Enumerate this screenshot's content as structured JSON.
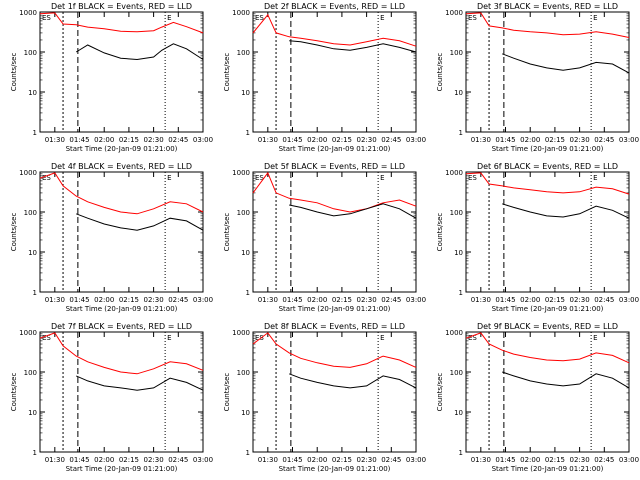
{
  "chart_data": [
    {
      "type": "line",
      "title": "Det 1f BLACK = Events, RED = LLD",
      "xlabel": "Start Time (20-Jan-09 01:21:00)",
      "ylabel": "Counts/sec",
      "yscale": "log",
      "ylim": [
        1,
        1000
      ],
      "xticks": [
        "01:30",
        "01:45",
        "02:00",
        "02:15",
        "02:30",
        "02:45",
        "03:00"
      ],
      "yticks": [
        "1",
        "10",
        "100",
        "1000"
      ],
      "markers": [
        "ES",
        "E"
      ],
      "series": [
        {
          "name": "Events",
          "color": "#000000",
          "x": [
            "01:43",
            "01:50",
            "02:00",
            "02:10",
            "02:20",
            "02:30",
            "02:35",
            "02:42",
            "02:50",
            "03:00"
          ],
          "y": [
            100,
            150,
            95,
            70,
            65,
            75,
            110,
            160,
            120,
            65
          ]
        },
        {
          "name": "LLD",
          "color": "#ff0000",
          "x": [
            "01:21",
            "01:30",
            "01:35",
            "01:43",
            "01:50",
            "02:00",
            "02:10",
            "02:20",
            "02:30",
            "02:35",
            "02:42",
            "02:50",
            "03:00"
          ],
          "y": [
            900,
            950,
            500,
            480,
            420,
            380,
            330,
            320,
            340,
            420,
            550,
            430,
            300
          ]
        }
      ]
    },
    {
      "type": "line",
      "title": "Det 2f BLACK = Events, RED = LLD",
      "xlabel": "Start Time (20-Jan-09 01:21:00)",
      "ylabel": "Counts/sec",
      "yscale": "log",
      "ylim": [
        1,
        1000
      ],
      "xticks": [
        "01:30",
        "01:45",
        "02:00",
        "02:15",
        "02:30",
        "02:45",
        "03:00"
      ],
      "yticks": [
        "1",
        "10",
        "100",
        "1000"
      ],
      "markers": [
        "ES",
        "E"
      ],
      "series": [
        {
          "name": "Events",
          "color": "#000000",
          "x": [
            "01:43",
            "01:50",
            "02:00",
            "02:10",
            "02:20",
            "02:30",
            "02:40",
            "02:50",
            "03:00"
          ],
          "y": [
            190,
            180,
            150,
            120,
            110,
            130,
            160,
            130,
            100
          ]
        },
        {
          "name": "LLD",
          "color": "#ff0000",
          "x": [
            "01:21",
            "01:30",
            "01:35",
            "01:43",
            "01:50",
            "02:00",
            "02:10",
            "02:20",
            "02:30",
            "02:40",
            "02:50",
            "03:00"
          ],
          "y": [
            300,
            850,
            300,
            240,
            220,
            190,
            160,
            150,
            180,
            220,
            190,
            140
          ]
        }
      ]
    },
    {
      "type": "line",
      "title": "Det 3f BLACK = Events, RED = LLD",
      "xlabel": "Start Time (20-Jan-09 01:21:00)",
      "ylabel": "Counts/sec",
      "yscale": "log",
      "ylim": [
        1,
        1000
      ],
      "xticks": [
        "01:30",
        "01:45",
        "02:00",
        "02:15",
        "02:30",
        "02:45",
        "03:00"
      ],
      "yticks": [
        "1",
        "10",
        "100",
        "1000"
      ],
      "markers": [
        "ES",
        "E"
      ],
      "series": [
        {
          "name": "Events",
          "color": "#000000",
          "x": [
            "01:43",
            "01:50",
            "02:00",
            "02:10",
            "02:20",
            "02:30",
            "02:40",
            "02:50",
            "03:00"
          ],
          "y": [
            90,
            70,
            50,
            40,
            35,
            40,
            55,
            50,
            30
          ]
        },
        {
          "name": "LLD",
          "color": "#ff0000",
          "x": [
            "01:21",
            "01:30",
            "01:35",
            "01:43",
            "01:50",
            "02:00",
            "02:10",
            "02:20",
            "02:30",
            "02:40",
            "02:50",
            "03:00"
          ],
          "y": [
            900,
            950,
            450,
            400,
            350,
            320,
            300,
            270,
            280,
            320,
            280,
            230
          ]
        }
      ]
    },
    {
      "type": "line",
      "title": "Det 4f BLACK = Events, RED = LLD",
      "xlabel": "Start Time (20-Jan-09 01:21:00)",
      "ylabel": "Counts/sec",
      "yscale": "log",
      "ylim": [
        1,
        1000
      ],
      "xticks": [
        "01:30",
        "01:45",
        "02:00",
        "02:15",
        "02:30",
        "02:45",
        "03:00"
      ],
      "yticks": [
        "1",
        "10",
        "100",
        "1000"
      ],
      "markers": [
        "ES",
        "E"
      ],
      "series": [
        {
          "name": "Events",
          "color": "#000000",
          "x": [
            "01:43",
            "01:50",
            "02:00",
            "02:10",
            "02:20",
            "02:30",
            "02:40",
            "02:50",
            "03:00"
          ],
          "y": [
            90,
            70,
            50,
            40,
            35,
            45,
            70,
            60,
            35
          ]
        },
        {
          "name": "LLD",
          "color": "#ff0000",
          "x": [
            "01:21",
            "01:30",
            "01:35",
            "01:43",
            "01:50",
            "02:00",
            "02:10",
            "02:20",
            "02:30",
            "02:40",
            "02:50",
            "03:00"
          ],
          "y": [
            700,
            950,
            450,
            250,
            180,
            130,
            100,
            90,
            120,
            180,
            160,
            100
          ]
        }
      ]
    },
    {
      "type": "line",
      "title": "Det 5f BLACK = Events, RED = LLD",
      "xlabel": "Start Time (20-Jan-09 01:21:00)",
      "ylabel": "Counts/sec",
      "yscale": "log",
      "ylim": [
        1,
        1000
      ],
      "xticks": [
        "01:30",
        "01:45",
        "02:00",
        "02:15",
        "02:30",
        "02:45",
        "03:00"
      ],
      "yticks": [
        "1",
        "10",
        "100",
        "1000"
      ],
      "markers": [
        "ES",
        "E"
      ],
      "series": [
        {
          "name": "Events",
          "color": "#000000",
          "x": [
            "01:43",
            "01:50",
            "02:00",
            "02:10",
            "02:20",
            "02:30",
            "02:40",
            "02:50",
            "03:00"
          ],
          "y": [
            150,
            130,
            100,
            80,
            90,
            120,
            160,
            120,
            70
          ]
        },
        {
          "name": "LLD",
          "color": "#ff0000",
          "x": [
            "01:21",
            "01:30",
            "01:35",
            "01:43",
            "01:50",
            "02:00",
            "02:10",
            "02:20",
            "02:30",
            "02:40",
            "02:50",
            "03:00"
          ],
          "y": [
            300,
            950,
            300,
            220,
            200,
            170,
            120,
            100,
            120,
            170,
            200,
            140
          ]
        }
      ]
    },
    {
      "type": "line",
      "title": "Det 6f BLACK = Events, RED = LLD",
      "xlabel": "Start Time (20-Jan-09 01:21:00)",
      "ylabel": "Counts/sec",
      "yscale": "log",
      "ylim": [
        1,
        1000
      ],
      "xticks": [
        "01:30",
        "01:45",
        "02:00",
        "02:15",
        "02:30",
        "02:45",
        "03:00"
      ],
      "yticks": [
        "1",
        "10",
        "100",
        "1000"
      ],
      "markers": [
        "ES",
        "E"
      ],
      "series": [
        {
          "name": "Events",
          "color": "#000000",
          "x": [
            "01:43",
            "01:50",
            "02:00",
            "02:10",
            "02:20",
            "02:30",
            "02:40",
            "02:50",
            "03:00"
          ],
          "y": [
            160,
            130,
            100,
            80,
            75,
            90,
            140,
            110,
            70
          ]
        },
        {
          "name": "LLD",
          "color": "#ff0000",
          "x": [
            "01:21",
            "01:30",
            "01:35",
            "01:43",
            "01:50",
            "02:00",
            "02:10",
            "02:20",
            "02:30",
            "02:40",
            "02:50",
            "03:00"
          ],
          "y": [
            900,
            950,
            500,
            450,
            400,
            360,
            320,
            300,
            320,
            420,
            380,
            280
          ]
        }
      ]
    },
    {
      "type": "line",
      "title": "Det 7f BLACK = Events, RED = LLD",
      "xlabel": "Start Time (20-Jan-09 01:21:00)",
      "ylabel": "Counts/sec",
      "yscale": "log",
      "ylim": [
        1,
        1000
      ],
      "xticks": [
        "01:30",
        "01:45",
        "02:00",
        "02:15",
        "02:30",
        "02:45",
        "03:00"
      ],
      "yticks": [
        "1",
        "10",
        "100",
        "1000"
      ],
      "markers": [
        "ES",
        "E"
      ],
      "series": [
        {
          "name": "Events",
          "color": "#000000",
          "x": [
            "01:43",
            "01:50",
            "02:00",
            "02:10",
            "02:20",
            "02:30",
            "02:40",
            "02:50",
            "03:00"
          ],
          "y": [
            80,
            60,
            45,
            40,
            35,
            40,
            70,
            55,
            35
          ]
        },
        {
          "name": "LLD",
          "color": "#ff0000",
          "x": [
            "01:21",
            "01:30",
            "01:35",
            "01:43",
            "01:50",
            "02:00",
            "02:10",
            "02:20",
            "02:30",
            "02:40",
            "02:50",
            "03:00"
          ],
          "y": [
            700,
            950,
            450,
            250,
            180,
            130,
            100,
            90,
            120,
            180,
            160,
            110
          ]
        }
      ]
    },
    {
      "type": "line",
      "title": "Det 8f BLACK = Events, RED = LLD",
      "xlabel": "Start Time (20-Jan-09 01:21:00)",
      "ylabel": "Counts/sec",
      "yscale": "log",
      "ylim": [
        1,
        1000
      ],
      "xticks": [
        "01:30",
        "01:45",
        "02:00",
        "02:15",
        "02:30",
        "02:45",
        "03:00"
      ],
      "yticks": [
        "1",
        "10",
        "100",
        "1000"
      ],
      "markers": [
        "ES",
        "E"
      ],
      "series": [
        {
          "name": "Events",
          "color": "#000000",
          "x": [
            "01:43",
            "01:50",
            "02:00",
            "02:10",
            "02:20",
            "02:30",
            "02:40",
            "02:50",
            "03:00"
          ],
          "y": [
            90,
            70,
            55,
            45,
            40,
            45,
            80,
            65,
            40
          ]
        },
        {
          "name": "LLD",
          "color": "#ff0000",
          "x": [
            "01:21",
            "01:30",
            "01:35",
            "01:43",
            "01:50",
            "02:00",
            "02:10",
            "02:20",
            "02:30",
            "02:40",
            "02:50",
            "03:00"
          ],
          "y": [
            500,
            950,
            500,
            300,
            220,
            170,
            140,
            130,
            160,
            250,
            200,
            130
          ]
        }
      ]
    },
    {
      "type": "line",
      "title": "Det 9f BLACK = Events, RED = LLD",
      "xlabel": "Start Time (20-Jan-09 01:21:00)",
      "ylabel": "Counts/sec",
      "yscale": "log",
      "ylim": [
        1,
        1000
      ],
      "xticks": [
        "01:30",
        "01:45",
        "02:00",
        "02:15",
        "02:30",
        "02:45",
        "03:00"
      ],
      "yticks": [
        "1",
        "10",
        "100",
        "1000"
      ],
      "markers": [
        "ES",
        "E"
      ],
      "series": [
        {
          "name": "Events",
          "color": "#000000",
          "x": [
            "01:43",
            "01:50",
            "02:00",
            "02:10",
            "02:20",
            "02:30",
            "02:40",
            "02:50",
            "03:00"
          ],
          "y": [
            100,
            80,
            60,
            50,
            45,
            50,
            90,
            70,
            40
          ]
        },
        {
          "name": "LLD",
          "color": "#ff0000",
          "x": [
            "01:21",
            "01:30",
            "01:35",
            "01:43",
            "01:50",
            "02:00",
            "02:10",
            "02:20",
            "02:30",
            "02:40",
            "02:50",
            "03:00"
          ],
          "y": [
            700,
            950,
            500,
            350,
            280,
            230,
            200,
            190,
            210,
            300,
            260,
            170
          ]
        }
      ]
    }
  ]
}
